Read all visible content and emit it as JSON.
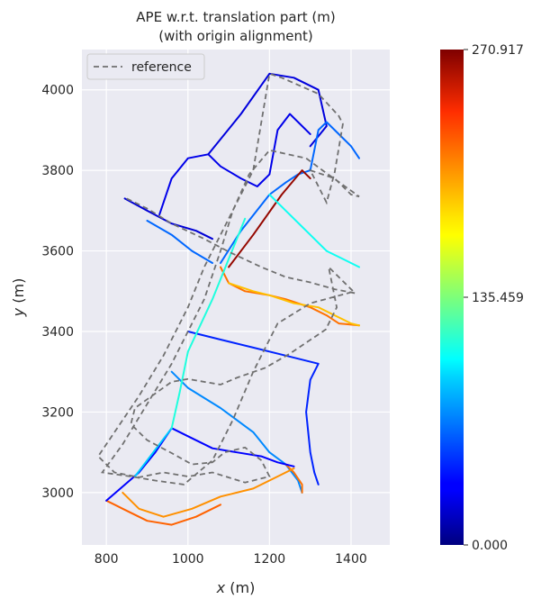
{
  "chart_data": {
    "type": "line",
    "title_line1": "APE w.r.t. translation part (m)",
    "title_line2": "(with origin alignment)",
    "xlabel_var": "x",
    "xlabel_unit": "(m)",
    "ylabel_var": "y",
    "ylabel_unit": "(m)",
    "xlim": [
      740,
      1495
    ],
    "ylim": [
      2870,
      4100
    ],
    "xticks": [
      800,
      1000,
      1200,
      1400
    ],
    "yticks": [
      3000,
      3200,
      3400,
      3600,
      3800,
      4000
    ],
    "grid": true,
    "legend_position": "top-left",
    "legend": {
      "label": "reference",
      "style": "dashed",
      "color": "#707070"
    },
    "colorbar": {
      "min": 0.0,
      "max": 270.917,
      "ticks": [
        {
          "value": 0.0,
          "label": "0.000"
        },
        {
          "value": 135.459,
          "label": "135.459"
        },
        {
          "value": 270.917,
          "label": "270.917"
        }
      ],
      "colormap": "jet"
    },
    "reference_path": [
      [
        850,
        3730
      ],
      [
        900,
        3705
      ],
      [
        960,
        3668
      ],
      [
        1040,
        3630
      ],
      [
        1100,
        3598
      ],
      [
        1180,
        3560
      ],
      [
        1240,
        3535
      ],
      [
        1300,
        3522
      ],
      [
        1360,
        3505
      ],
      [
        1410,
        3495
      ],
      [
        1345,
        3560
      ],
      [
        1365,
        3460
      ],
      [
        1338,
        3405
      ],
      [
        1250,
        3345
      ],
      [
        1190,
        3310
      ],
      [
        1120,
        3285
      ],
      [
        1080,
        3268
      ],
      [
        1000,
        3282
      ],
      [
        960,
        3275
      ],
      [
        870,
        3210
      ],
      [
        860,
        3170
      ],
      [
        900,
        3130
      ],
      [
        960,
        3098
      ],
      [
        1010,
        3070
      ],
      [
        1060,
        3075
      ],
      [
        1090,
        3100
      ],
      [
        1140,
        3112
      ],
      [
        1180,
        3080
      ],
      [
        1200,
        3040
      ],
      [
        1140,
        3025
      ],
      [
        1060,
        3050
      ],
      [
        1000,
        3040
      ],
      [
        940,
        3050
      ],
      [
        880,
        3038
      ],
      [
        820,
        3050
      ],
      [
        780,
        3090
      ],
      [
        820,
        3150
      ],
      [
        880,
        3240
      ],
      [
        940,
        3340
      ],
      [
        1000,
        3460
      ],
      [
        1040,
        3560
      ],
      [
        1080,
        3640
      ],
      [
        1120,
        3720
      ],
      [
        1160,
        3800
      ],
      [
        1200,
        4040
      ],
      [
        1230,
        4030
      ],
      [
        1320,
        3990
      ],
      [
        1370,
        3935
      ],
      [
        1380,
        3915
      ],
      [
        1360,
        3795
      ],
      [
        1340,
        3720
      ],
      [
        1300,
        3800
      ],
      [
        1330,
        3790
      ],
      [
        1360,
        3780
      ],
      [
        1400,
        3740
      ],
      [
        1420,
        3735
      ],
      [
        1330,
        3800
      ],
      [
        1290,
        3830
      ],
      [
        1200,
        3850
      ],
      [
        1150,
        3790
      ],
      [
        1110,
        3700
      ],
      [
        1080,
        3600
      ],
      [
        1040,
        3480
      ],
      [
        1000,
        3400
      ],
      [
        960,
        3320
      ],
      [
        900,
        3220
      ],
      [
        840,
        3120
      ],
      [
        790,
        3050
      ],
      [
        860,
        3040
      ],
      [
        920,
        3030
      ],
      [
        990,
        3020
      ],
      [
        1060,
        3080
      ],
      [
        1110,
        3180
      ],
      [
        1160,
        3300
      ],
      [
        1220,
        3420
      ],
      [
        1300,
        3470
      ],
      [
        1410,
        3500
      ]
    ],
    "estimate_segments": [
      {
        "points": [
          [
            845,
            3730
          ],
          [
            900,
            3700
          ],
          [
            960,
            3668
          ],
          [
            1020,
            3650
          ],
          [
            1060,
            3630
          ]
        ],
        "ape": 20
      },
      {
        "points": [
          [
            900,
            3675
          ],
          [
            960,
            3640
          ],
          [
            1010,
            3600
          ],
          [
            1060,
            3570
          ]
        ],
        "ape": 60
      },
      {
        "points": [
          [
            930,
            3690
          ],
          [
            960,
            3780
          ],
          [
            1000,
            3830
          ],
          [
            1050,
            3840
          ],
          [
            1080,
            3810
          ],
          [
            1130,
            3780
          ],
          [
            1170,
            3760
          ],
          [
            1200,
            3790
          ],
          [
            1220,
            3900
          ],
          [
            1250,
            3940
          ],
          [
            1300,
            3890
          ]
        ],
        "ape": 25
      },
      {
        "points": [
          [
            1050,
            3840
          ],
          [
            1130,
            3940
          ],
          [
            1200,
            4040
          ],
          [
            1260,
            4030
          ],
          [
            1320,
            4000
          ],
          [
            1340,
            3910
          ],
          [
            1300,
            3860
          ]
        ],
        "ape": 22
      },
      {
        "points": [
          [
            1080,
            3570
          ],
          [
            1130,
            3650
          ],
          [
            1200,
            3740
          ],
          [
            1240,
            3770
          ],
          [
            1270,
            3790
          ],
          [
            1300,
            3800
          ],
          [
            1320,
            3900
          ],
          [
            1340,
            3920
          ],
          [
            1400,
            3860
          ],
          [
            1420,
            3830
          ]
        ],
        "ape": 60
      },
      {
        "points": [
          [
            1100,
            3560
          ],
          [
            1160,
            3640
          ],
          [
            1230,
            3740
          ],
          [
            1280,
            3800
          ],
          [
            1300,
            3780
          ]
        ],
        "ape": 265
      },
      {
        "points": [
          [
            1200,
            3740
          ],
          [
            1240,
            3700
          ],
          [
            1300,
            3640
          ],
          [
            1340,
            3600
          ],
          [
            1380,
            3580
          ],
          [
            1420,
            3560
          ]
        ],
        "ape": 105
      },
      {
        "points": [
          [
            1080,
            3560
          ],
          [
            1100,
            3520
          ],
          [
            1140,
            3500
          ],
          [
            1200,
            3490
          ],
          [
            1240,
            3480
          ],
          [
            1300,
            3460
          ],
          [
            1340,
            3440
          ],
          [
            1370,
            3420
          ],
          [
            1420,
            3415
          ]
        ],
        "ape": 215
      },
      {
        "points": [
          [
            1100,
            3520
          ],
          [
            1160,
            3500
          ],
          [
            1200,
            3490
          ],
          [
            1260,
            3470
          ],
          [
            1320,
            3460
          ],
          [
            1360,
            3440
          ],
          [
            1400,
            3420
          ],
          [
            1420,
            3415
          ]
        ],
        "ape": 190
      },
      {
        "points": [
          [
            1000,
            3400
          ],
          [
            1080,
            3380
          ],
          [
            1160,
            3360
          ],
          [
            1240,
            3340
          ],
          [
            1320,
            3320
          ],
          [
            1300,
            3280
          ],
          [
            1290,
            3200
          ],
          [
            1300,
            3100
          ],
          [
            1310,
            3050
          ],
          [
            1320,
            3020
          ]
        ],
        "ape": 40
      },
      {
        "points": [
          [
            960,
            3300
          ],
          [
            1000,
            3260
          ],
          [
            1080,
            3210
          ],
          [
            1160,
            3150
          ],
          [
            1200,
            3100
          ],
          [
            1240,
            3070
          ],
          [
            1270,
            3030
          ],
          [
            1280,
            3000
          ]
        ],
        "ape": 70
      },
      {
        "points": [
          [
            1240,
            3070
          ],
          [
            1260,
            3050
          ],
          [
            1280,
            3020
          ],
          [
            1280,
            3000
          ]
        ],
        "ape": 215
      },
      {
        "points": [
          [
            840,
            3000
          ],
          [
            880,
            2960
          ],
          [
            940,
            2940
          ],
          [
            1010,
            2960
          ],
          [
            1080,
            2990
          ],
          [
            1160,
            3010
          ],
          [
            1220,
            3040
          ],
          [
            1260,
            3060
          ]
        ],
        "ape": 205
      },
      {
        "points": [
          [
            800,
            2980
          ],
          [
            840,
            2960
          ],
          [
            900,
            2930
          ],
          [
            960,
            2920
          ],
          [
            1020,
            2940
          ],
          [
            1080,
            2970
          ]
        ],
        "ape": 220
      },
      {
        "points": [
          [
            800,
            2980
          ],
          [
            880,
            3050
          ],
          [
            920,
            3100
          ],
          [
            960,
            3160
          ],
          [
            1000,
            3140
          ],
          [
            1060,
            3110
          ],
          [
            1120,
            3100
          ],
          [
            1180,
            3090
          ],
          [
            1220,
            3075
          ],
          [
            1260,
            3065
          ]
        ],
        "ape": 30
      },
      {
        "points": [
          [
            870,
            3040
          ],
          [
            900,
            3080
          ],
          [
            930,
            3120
          ],
          [
            960,
            3160
          ]
        ],
        "ape": 90
      },
      {
        "points": [
          [
            960,
            3160
          ],
          [
            980,
            3250
          ],
          [
            1000,
            3350
          ],
          [
            1060,
            3480
          ],
          [
            1100,
            3580
          ],
          [
            1140,
            3680
          ]
        ],
        "ape": 110
      }
    ]
  }
}
